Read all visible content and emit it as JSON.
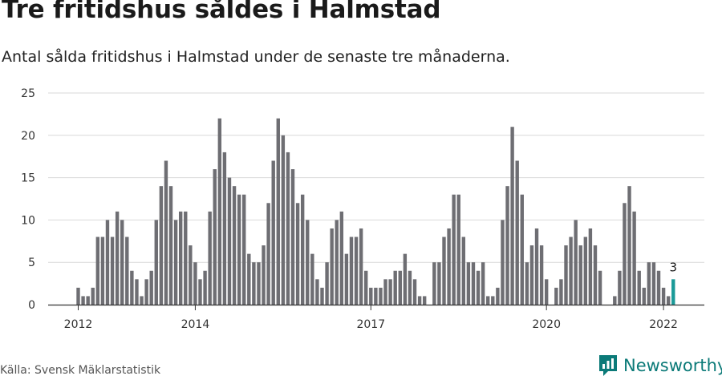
{
  "header": {
    "title": "Tre fritidshus såldes i Halmstad",
    "subtitle": "Antal sålda fritidshus i Halmstad under de senaste tre månaderna."
  },
  "footer": {
    "source": "Källa: Svensk Mäklarstatistik",
    "brand": "Newsworthy"
  },
  "colors": {
    "bar": "#6e6e73",
    "highlight": "#1b9a98",
    "grid": "#d9d9d9",
    "axis": "#333333",
    "brand": "#0b7a78"
  },
  "chart_data": {
    "type": "bar",
    "title": "Tre fritidshus såldes i Halmstad",
    "ylabel": "",
    "xlabel": "",
    "ylim": [
      0,
      25
    ],
    "yticks": [
      0,
      5,
      10,
      15,
      20,
      25
    ],
    "start_period": "2012-01",
    "period": "month",
    "x_tick_labels": [
      {
        "label": "2012",
        "index": 0
      },
      {
        "label": "2014",
        "index": 24
      },
      {
        "label": "2017",
        "index": 60
      },
      {
        "label": "2020",
        "index": 96
      },
      {
        "label": "2022",
        "index": 120
      }
    ],
    "values": [
      2,
      1,
      1,
      2,
      8,
      8,
      10,
      8,
      11,
      10,
      8,
      4,
      3,
      1,
      3,
      4,
      10,
      14,
      17,
      14,
      10,
      11,
      11,
      7,
      5,
      3,
      4,
      11,
      16,
      22,
      18,
      15,
      14,
      13,
      13,
      6,
      5,
      5,
      7,
      12,
      17,
      22,
      20,
      18,
      16,
      12,
      13,
      10,
      6,
      3,
      2,
      5,
      9,
      10,
      11,
      6,
      8,
      8,
      9,
      4,
      2,
      2,
      2,
      3,
      3,
      4,
      4,
      6,
      4,
      3,
      1,
      1,
      0,
      5,
      5,
      8,
      9,
      13,
      13,
      8,
      5,
      5,
      4,
      5,
      1,
      1,
      2,
      10,
      14,
      21,
      17,
      13,
      5,
      7,
      9,
      7,
      3,
      0,
      2,
      3,
      7,
      8,
      10,
      7,
      8,
      9,
      7,
      4,
      0,
      0,
      1,
      4,
      12,
      14,
      11,
      4,
      2,
      5,
      5,
      4,
      2,
      1,
      3
    ],
    "highlight_last": true,
    "annotation": {
      "label": "3",
      "value": 3
    }
  }
}
